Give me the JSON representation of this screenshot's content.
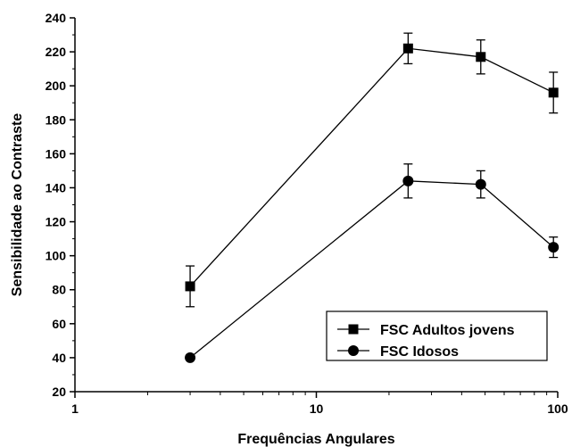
{
  "chart_data": {
    "type": "line",
    "xlabel": "Frequências Angulares",
    "ylabel": "Sensibilidade ao Contraste",
    "xscale": "log",
    "xlim": [
      1,
      100
    ],
    "ylim": [
      20,
      240
    ],
    "xticks": [
      1,
      10,
      100
    ],
    "xtick_labels": [
      "1",
      "10",
      "100"
    ],
    "yticks": [
      20,
      40,
      60,
      80,
      100,
      120,
      140,
      160,
      180,
      200,
      220,
      240
    ],
    "ytick_labels": [
      "20",
      "40",
      "60",
      "80",
      "100",
      "120",
      "140",
      "160",
      "180",
      "200",
      "220",
      "240"
    ],
    "grid": false,
    "legend_position": "bottom-right",
    "series": [
      {
        "name": "FSC Adultos jovens",
        "marker": "square",
        "x": [
          3,
          24,
          48,
          96
        ],
        "y": [
          82,
          222,
          217,
          196
        ],
        "err": [
          12,
          9,
          10,
          12
        ]
      },
      {
        "name": "FSC Idosos",
        "marker": "circle",
        "x": [
          3,
          24,
          48,
          96
        ],
        "y": [
          40,
          144,
          142,
          105
        ],
        "err": [
          1,
          10,
          8,
          6
        ]
      }
    ]
  }
}
